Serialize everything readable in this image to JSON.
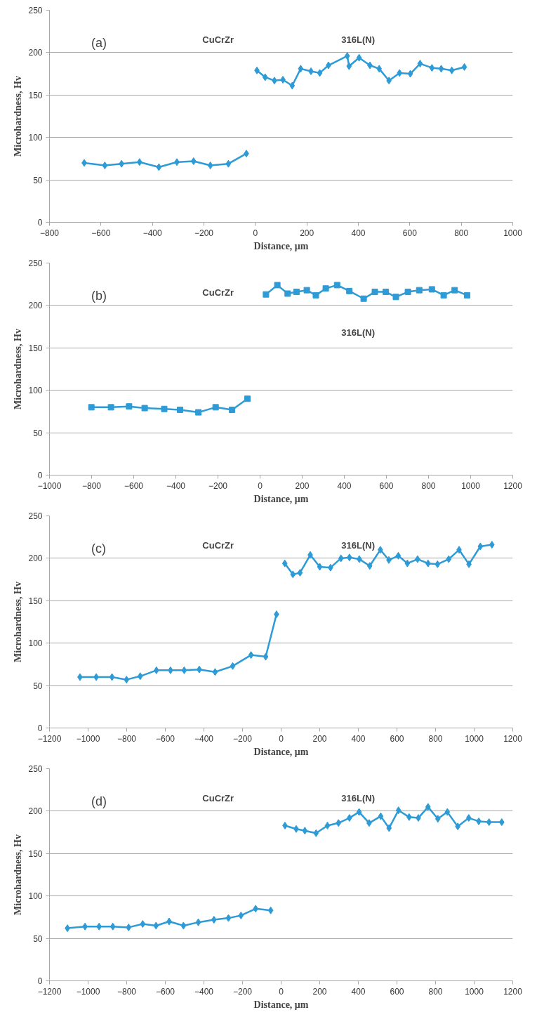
{
  "chart_data": [
    {
      "type": "line",
      "xlabel": "Distance, μm",
      "ylabel": "Microhardness, Hv",
      "marker": "diamond",
      "grid": "y",
      "xlim": [
        -800,
        1000
      ],
      "ylim": [
        0,
        250
      ],
      "xticks": [
        -800,
        -600,
        -400,
        -200,
        0,
        200,
        400,
        600,
        800,
        1000
      ],
      "yticks": [
        0,
        50,
        100,
        150,
        200,
        250
      ],
      "annotations": [
        "(a)",
        "CuCrZr",
        "316L(N)"
      ],
      "series": [
        {
          "color": "#2e9bd6",
          "x": [
            -665,
            -585,
            -520,
            -450,
            -375,
            -305,
            -240,
            -175,
            -105,
            -35
          ],
          "values": [
            70,
            67,
            69,
            71,
            65,
            71,
            72,
            67,
            69,
            81
          ]
        },
        {
          "color": "#2e9bd6",
          "x": [
            6,
            38,
            74,
            107,
            143,
            176,
            216,
            250,
            284,
            357,
            364,
            403,
            445,
            481,
            519,
            560,
            602,
            640,
            686,
            722,
            763,
            812
          ],
          "values": [
            179,
            171,
            167,
            168,
            161,
            181,
            178,
            176,
            185,
            196,
            184,
            194,
            185,
            181,
            167,
            176,
            175,
            187,
            182,
            181,
            179,
            183
          ]
        }
      ]
    },
    {
      "type": "line",
      "xlabel": "Distance, μm",
      "ylabel": "Microhardness, Hv",
      "marker": "square",
      "grid": "y",
      "xlim": [
        -1000,
        1200
      ],
      "ylim": [
        0,
        250
      ],
      "xticks": [
        -1000,
        -800,
        -600,
        -400,
        -200,
        0,
        200,
        400,
        600,
        800,
        1000,
        1200
      ],
      "yticks": [
        0,
        50,
        100,
        150,
        200,
        250
      ],
      "annotations": [
        "(b)",
        "CuCrZr",
        "316L(N)"
      ],
      "series": [
        {
          "color": "#2e9bd6",
          "x": [
            -801,
            -708,
            -622,
            -548,
            -455,
            -380,
            -293,
            -211,
            -133,
            -60
          ],
          "values": [
            80,
            80,
            81,
            79,
            78,
            77,
            74,
            80,
            77,
            90
          ]
        },
        {
          "color": "#2e9bd6",
          "x": [
            28,
            82,
            131,
            173,
            222,
            265,
            312,
            366,
            424,
            492,
            545,
            597,
            645,
            702,
            756,
            816,
            872,
            924,
            983
          ],
          "values": [
            213,
            224,
            214,
            216,
            218,
            212,
            220,
            224,
            217,
            208,
            216,
            216,
            210,
            216,
            218,
            219,
            212,
            218,
            212
          ]
        }
      ]
    },
    {
      "type": "line",
      "xlabel": "Distance, μm",
      "ylabel": "Microhardness, Hv",
      "marker": "diamond",
      "grid": "y",
      "xlim": [
        -1200,
        1200
      ],
      "ylim": [
        0,
        250
      ],
      "xticks": [
        -1200,
        -1000,
        -800,
        -600,
        -400,
        -200,
        0,
        200,
        400,
        600,
        800,
        1000,
        1200
      ],
      "yticks": [
        0,
        50,
        100,
        150,
        200,
        250
      ],
      "annotations": [
        "(c)",
        "CuCrZr",
        "316L(N)"
      ],
      "series": [
        {
          "color": "#2e9bd6",
          "x": [
            -1042,
            -958,
            -876,
            -801,
            -730,
            -646,
            -573,
            -502,
            -424,
            -342,
            -251,
            -156,
            -80,
            -24
          ],
          "values": [
            60,
            60,
            60,
            57,
            61,
            68,
            68,
            68,
            69,
            66,
            73,
            86,
            84,
            134
          ]
        },
        {
          "color": "#2e9bd6",
          "x": [
            19,
            61,
            98,
            151,
            200,
            256,
            310,
            354,
            405,
            459,
            514,
            558,
            607,
            654,
            707,
            761,
            810,
            868,
            922,
            973,
            1032,
            1092
          ],
          "values": [
            194,
            181,
            183,
            204,
            190,
            189,
            200,
            201,
            199,
            191,
            210,
            198,
            203,
            194,
            199,
            194,
            193,
            199,
            210,
            193,
            214,
            216
          ]
        }
      ]
    },
    {
      "type": "line",
      "xlabel": "Distance, μm",
      "ylabel": "Microhardness, Hv",
      "marker": "diamond",
      "grid": "y",
      "xlim": [
        -1200,
        1200
      ],
      "ylim": [
        0,
        250
      ],
      "xticks": [
        -1200,
        -1000,
        -800,
        -600,
        -400,
        -200,
        0,
        200,
        400,
        600,
        800,
        1000,
        1200
      ],
      "yticks": [
        0,
        50,
        100,
        150,
        200,
        250
      ],
      "annotations": [
        "(d)",
        "CuCrZr",
        "316L(N)"
      ],
      "series": [
        {
          "color": "#2e9bd6",
          "x": [
            -1107,
            -1016,
            -943,
            -872,
            -790,
            -717,
            -648,
            -580,
            -506,
            -429,
            -348,
            -273,
            -208,
            -132,
            -54
          ],
          "values": [
            62,
            64,
            64,
            64,
            63,
            67,
            65,
            70,
            65,
            69,
            72,
            74,
            77,
            85,
            83
          ]
        },
        {
          "color": "#2e9bd6",
          "x": [
            20,
            78,
            123,
            181,
            240,
            297,
            354,
            404,
            456,
            516,
            559,
            608,
            663,
            711,
            761,
            812,
            861,
            915,
            972,
            1024,
            1077,
            1143
          ],
          "values": [
            183,
            179,
            177,
            174,
            183,
            186,
            192,
            199,
            186,
            194,
            180,
            201,
            193,
            192,
            205,
            191,
            199,
            182,
            192,
            188,
            187,
            187
          ]
        }
      ]
    }
  ]
}
